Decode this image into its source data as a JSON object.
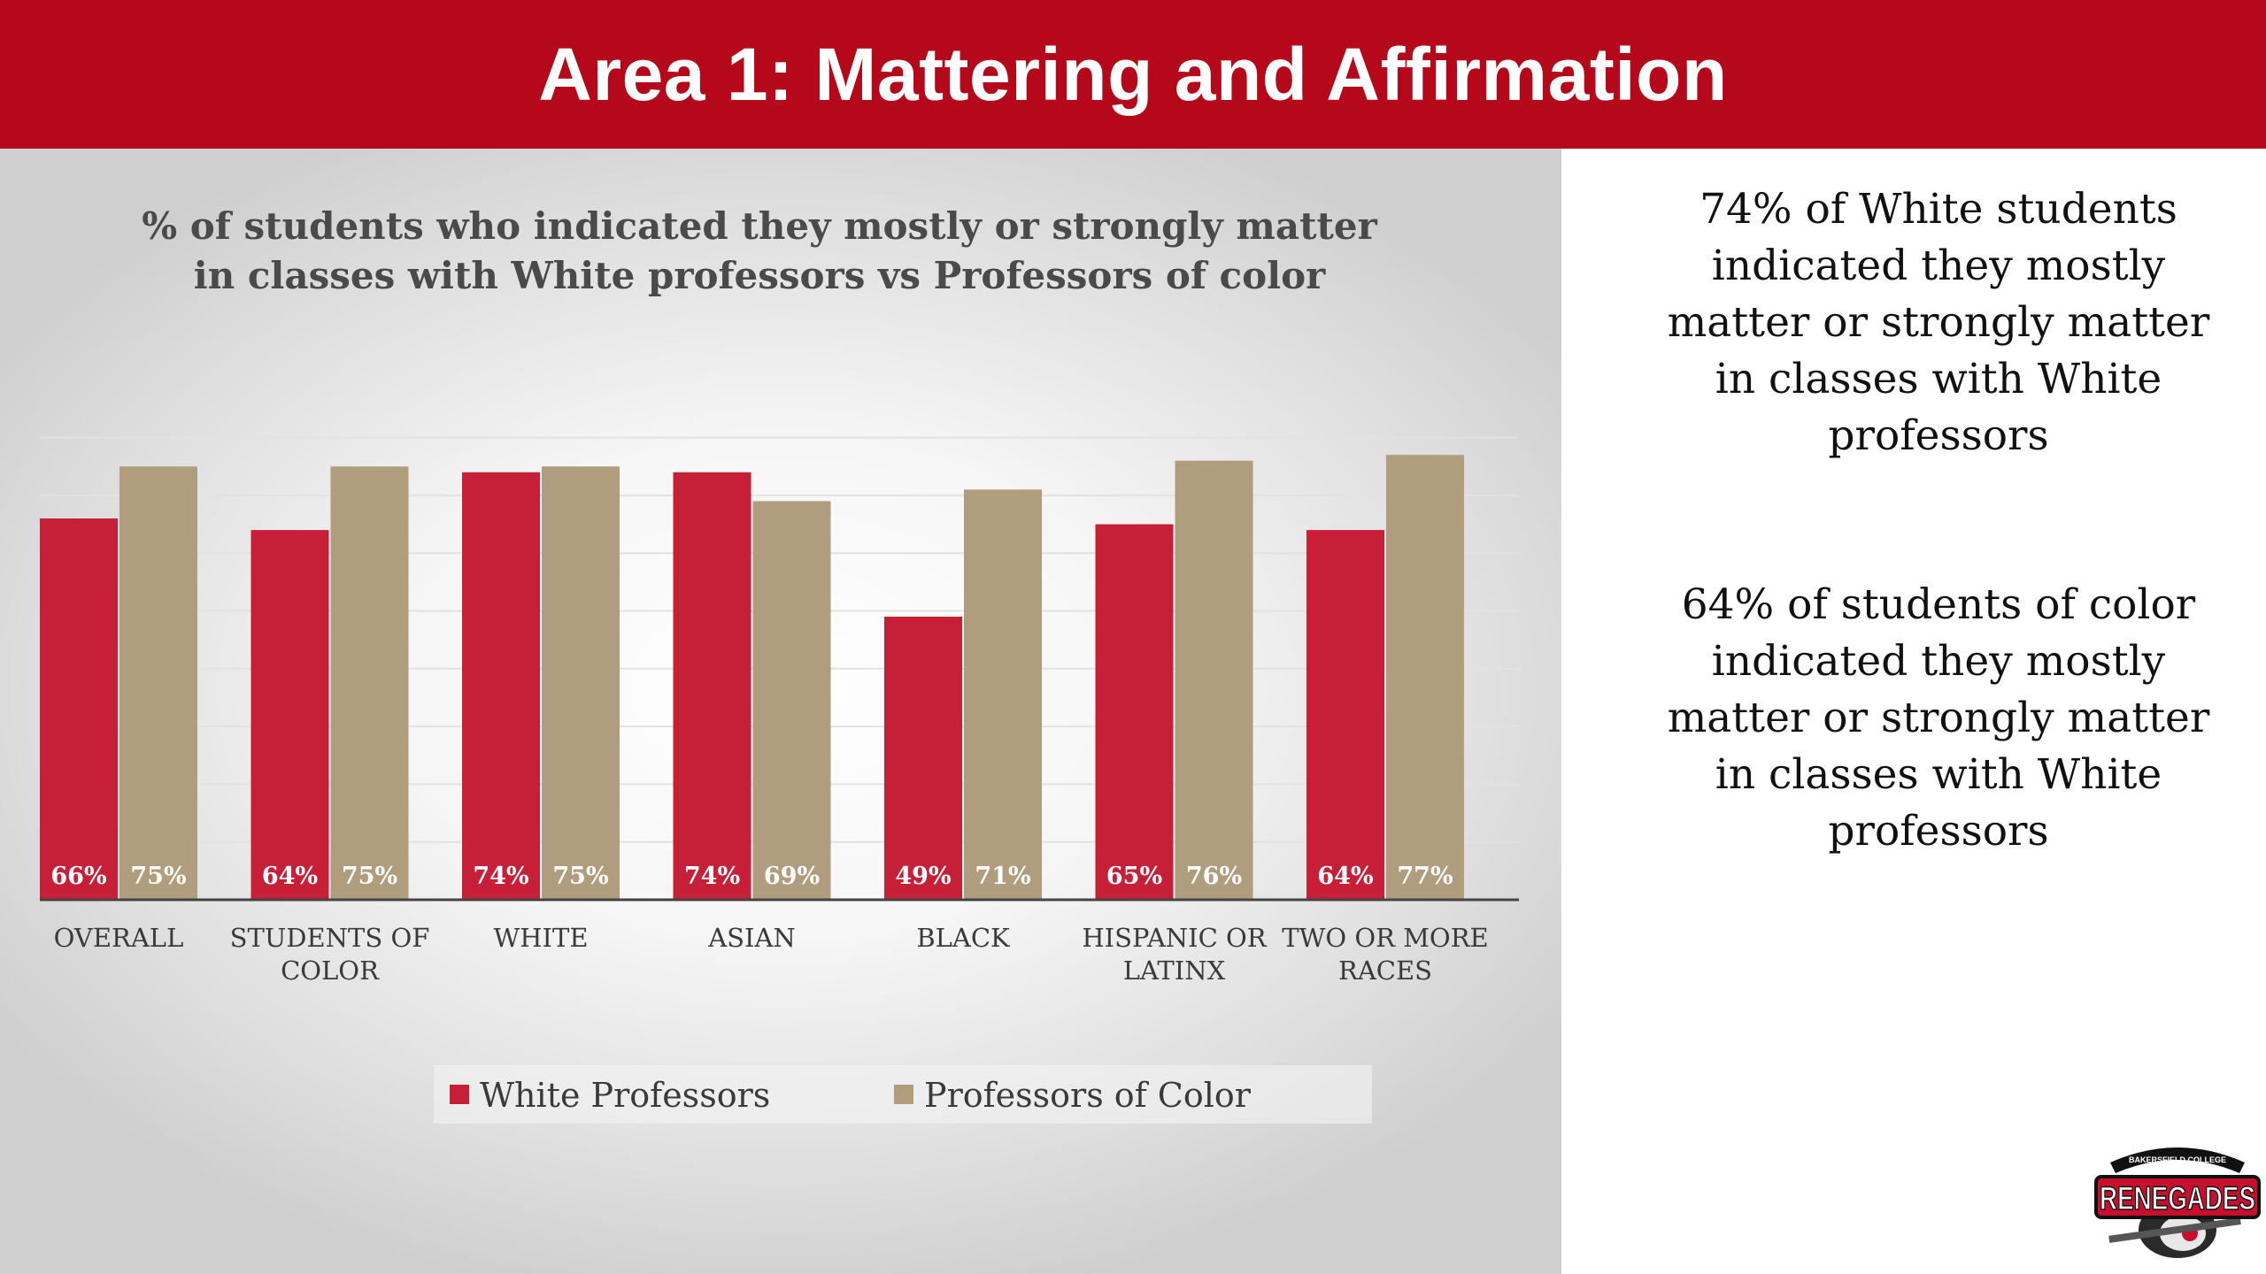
{
  "header": {
    "title": "Area 1: Mattering and Affirmation"
  },
  "chart_data": {
    "type": "bar",
    "title_lines": [
      "% of students who indicated they mostly or strongly matter",
      "in classes with White professors vs Professors of color"
    ],
    "categories": [
      [
        "OVERALL"
      ],
      [
        "STUDENTS OF",
        "COLOR"
      ],
      [
        "WHITE"
      ],
      [
        "ASIAN"
      ],
      [
        "BLACK"
      ],
      [
        "HISPANIC OR",
        "LATINX"
      ],
      [
        "TWO OR MORE",
        "RACES"
      ]
    ],
    "series": [
      {
        "name": "White Professors",
        "color": "#c71f37",
        "values": [
          66,
          64,
          74,
          74,
          49,
          65,
          64
        ],
        "labels": [
          "66%",
          "64%",
          "74%",
          "74%",
          "49%",
          "65%",
          "64%"
        ]
      },
      {
        "name": "Professors  of Color",
        "color": "#b09d7e",
        "values": [
          75,
          75,
          75,
          69,
          71,
          76,
          77
        ],
        "labels": [
          "75%",
          "75%",
          "75%",
          "69%",
          "71%",
          "76%",
          "77%"
        ]
      }
    ],
    "ylim": [
      0,
      80
    ],
    "grid": true,
    "legend_position": "bottom",
    "data_labels_position": "inside-base"
  },
  "sidebar": {
    "statement_1": "74% of White students indicated they mostly matter or strongly matter in classes with White professors",
    "statement_2": "64% of students of color indicated they mostly matter or strongly matter in classes with White professors"
  },
  "logo": {
    "top_text": "BAKERSFIELD COLLEGE",
    "wordmark": "RENEGADES"
  }
}
